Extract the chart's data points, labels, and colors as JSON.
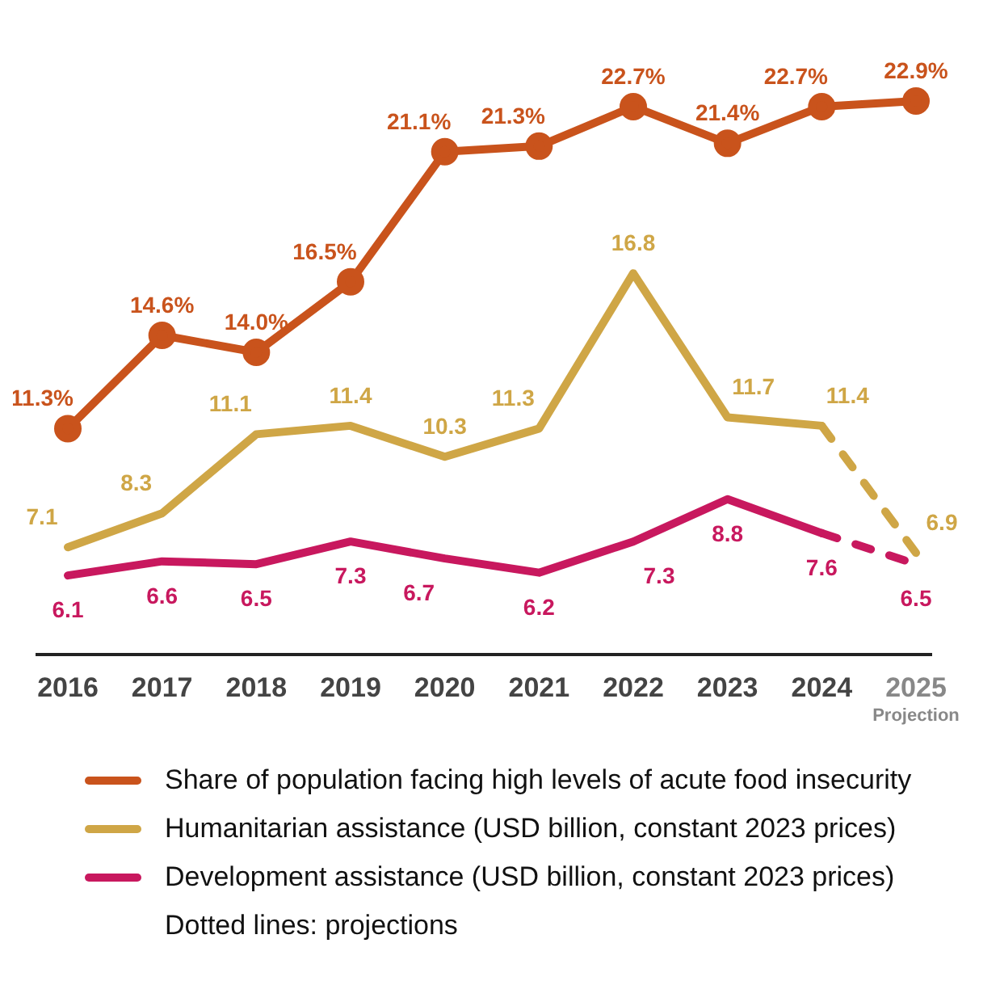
{
  "chart_data": {
    "type": "line",
    "categories": [
      "2016",
      "2017",
      "2018",
      "2019",
      "2020",
      "2021",
      "2022",
      "2023",
      "2024",
      "2025"
    ],
    "series": [
      {
        "name": "Share of population facing high levels of acute food insecurity",
        "color": "#c9531c",
        "marker": "circle",
        "line_style": "solid",
        "values": [
          11.3,
          14.6,
          14.0,
          16.5,
          21.1,
          21.3,
          22.7,
          21.4,
          22.7,
          22.9
        ],
        "value_labels": [
          "11.3%",
          "14.6%",
          "14.0%",
          "16.5%",
          "21.1%",
          "21.3%",
          "22.7%",
          "21.4%",
          "22.7%",
          "22.9%"
        ]
      },
      {
        "name": "Humanitarian assistance (USD billion, constant 2023 prices)",
        "color": "#cfa646",
        "marker": "none",
        "line_style": "solid",
        "values": [
          7.1,
          8.3,
          11.1,
          11.4,
          10.3,
          11.3,
          16.8,
          11.7,
          11.4,
          null
        ],
        "value_labels": [
          "7.1",
          "8.3",
          "11.1",
          "11.4",
          "10.3",
          "11.3",
          "16.8",
          "11.7",
          "11.4",
          null
        ]
      },
      {
        "name": "Development assistance (USD billion, constant 2023 prices)",
        "color": "#c8185e",
        "marker": "none",
        "line_style": "solid",
        "values": [
          6.1,
          6.6,
          6.5,
          7.3,
          6.7,
          6.2,
          7.3,
          8.8,
          7.6,
          null
        ],
        "value_labels": [
          "6.1",
          "6.6",
          "6.5",
          "7.3",
          "6.7",
          "6.2",
          "7.3",
          "8.8",
          "7.6",
          null
        ]
      },
      {
        "color": "#cfa646",
        "marker": "none",
        "line_style": "dashed",
        "values": [
          null,
          null,
          null,
          null,
          null,
          null,
          null,
          null,
          11.4,
          6.9
        ],
        "value_labels": [
          null,
          null,
          null,
          null,
          null,
          null,
          null,
          null,
          null,
          "6.9"
        ]
      },
      {
        "color": "#c8185e",
        "marker": "none",
        "line_style": "dashed",
        "values": [
          null,
          null,
          null,
          null,
          null,
          null,
          null,
          null,
          7.6,
          6.5
        ],
        "value_labels": [
          null,
          null,
          null,
          null,
          null,
          null,
          null,
          null,
          null,
          "6.5"
        ]
      }
    ],
    "legend": "bottom",
    "annotations": [
      "Projection",
      "Dotted lines: projections"
    ]
  }
}
